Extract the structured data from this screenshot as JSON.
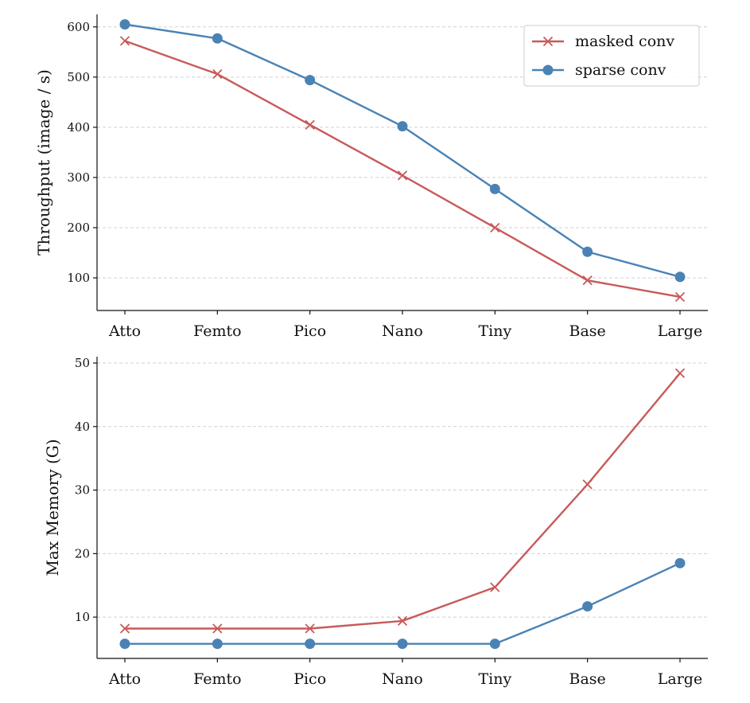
{
  "colors": {
    "masked": "#c85a5a",
    "sparse": "#4a82b4"
  },
  "chart_data": [
    {
      "type": "line",
      "categories": [
        "Atto",
        "Femto",
        "Pico",
        "Nano",
        "Tiny",
        "Base",
        "Large"
      ],
      "ylabel": "Throughput (image / s)",
      "xlabel": "",
      "ylim": [
        35,
        625
      ],
      "yticks": [
        100,
        200,
        300,
        400,
        500,
        600
      ],
      "grid": "y-dashed",
      "legend": "top-right",
      "series": [
        {
          "name": "masked conv",
          "marker": "x",
          "color": "#c85a5a",
          "values": [
            572,
            506,
            405,
            304,
            200,
            95,
            62
          ]
        },
        {
          "name": "sparse conv",
          "marker": "o",
          "color": "#4a82b4",
          "values": [
            605,
            577,
            494,
            402,
            277,
            152,
            102
          ]
        }
      ]
    },
    {
      "type": "line",
      "categories": [
        "Atto",
        "Femto",
        "Pico",
        "Nano",
        "Tiny",
        "Base",
        "Large"
      ],
      "ylabel": "Max Memory (G)",
      "xlabel": "",
      "ylim": [
        3.5,
        51
      ],
      "yticks": [
        10,
        20,
        30,
        40,
        50
      ],
      "grid": "y-dashed",
      "series": [
        {
          "name": "masked conv",
          "marker": "x",
          "color": "#c85a5a",
          "values": [
            8.2,
            8.2,
            8.2,
            9.4,
            14.7,
            30.9,
            48.4
          ]
        },
        {
          "name": "sparse conv",
          "marker": "o",
          "color": "#4a82b4",
          "values": [
            5.8,
            5.8,
            5.8,
            5.8,
            5.8,
            11.7,
            18.5
          ]
        }
      ]
    }
  ]
}
